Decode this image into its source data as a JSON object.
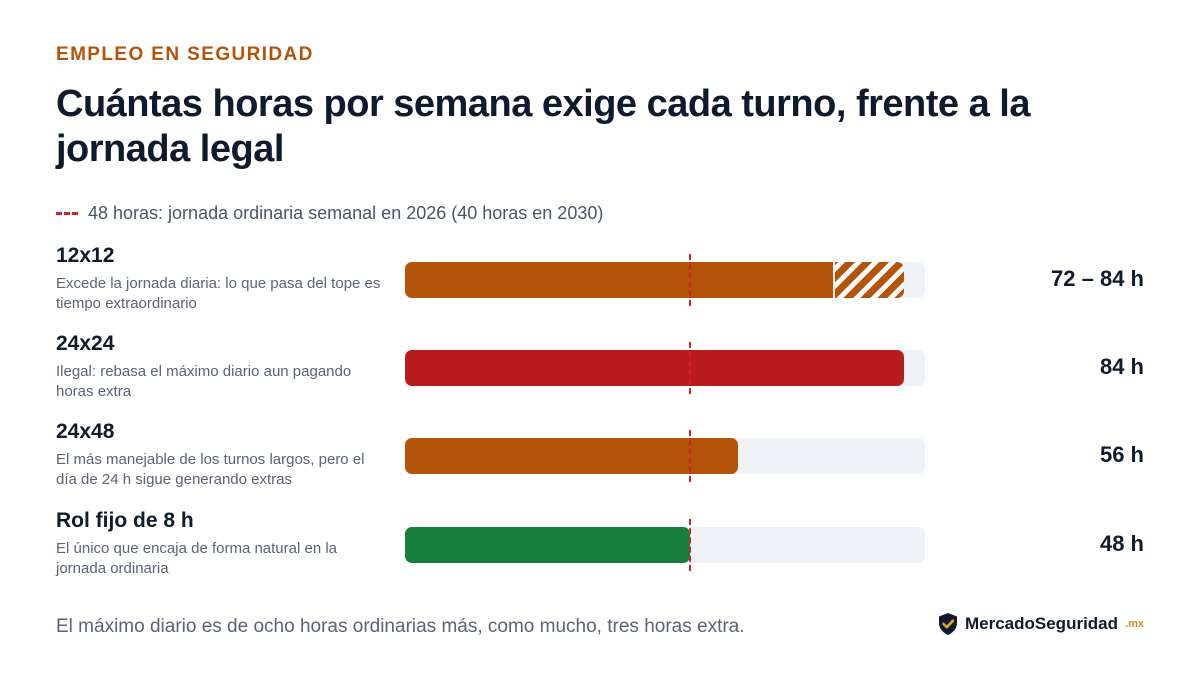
{
  "header": {
    "eyebrow": "EMPLEO EN SEGURIDAD",
    "title": "Cuántas horas por semana exige cada turno, frente a la jornada legal"
  },
  "legend": {
    "reference_label": "48 horas: jornada ordinaria semanal en 2026 (40 horas en 2030)",
    "reference_color": "#d21f2a"
  },
  "chart_data": {
    "type": "bar",
    "orientation": "horizontal",
    "categories": [
      "12x12",
      "24x24",
      "24x48",
      "Rol fijo de 8 h"
    ],
    "descriptions": [
      "Excede la jornada diaria: lo que pasa del tope es tiempo extraordinario",
      "Ilegal: rebasa el máximo diario aun pagando horas extra",
      "El más manejable de los turnos largos, pero el día de 24 h sigue generando extras",
      "El único que encaja de forma natural en la jornada ordinaria"
    ],
    "values": [
      72,
      84,
      56,
      48
    ],
    "range_max": [
      84,
      null,
      null,
      null
    ],
    "value_labels": [
      "72 – 84 h",
      "84 h",
      "56 h",
      "48 h"
    ],
    "colors": [
      "#b4530a",
      "#b91c1c",
      "#b4530a",
      "#15803d"
    ],
    "reference_line": 48,
    "xlim": [
      0,
      90
    ]
  },
  "footer": {
    "note": "El máximo diario es de ocho horas ordinarias más, como mucho, tres horas extra.",
    "brand_main": "MercadoSeguridad",
    "brand_tld": ".mx",
    "brand_icon": "shield-check-icon",
    "brand_colors": {
      "shield": "#0f1b2d",
      "check": "#e0a82e"
    }
  }
}
